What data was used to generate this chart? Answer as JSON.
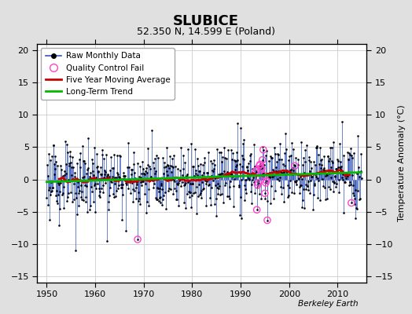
{
  "title": "SLUBICE",
  "subtitle": "52.350 N, 14.599 E (Poland)",
  "ylabel": "Temperature Anomaly (°C)",
  "credit": "Berkeley Earth",
  "xlim": [
    1948,
    2016
  ],
  "ylim": [
    -16,
    21
  ],
  "yticks": [
    -15,
    -10,
    -5,
    0,
    5,
    10,
    15,
    20
  ],
  "xticks": [
    1950,
    1960,
    1970,
    1980,
    1990,
    2000,
    2010
  ],
  "bg_color": "#e0e0e0",
  "plot_bg": "#ffffff",
  "raw_color": "#3355bb",
  "raw_dot_color": "#000000",
  "qc_color": "#ff44cc",
  "moving_avg_color": "#cc0000",
  "trend_color": "#00bb00",
  "legend_labels": [
    "Raw Monthly Data",
    "Quality Control Fail",
    "Five Year Moving Average",
    "Long-Term Trend"
  ]
}
